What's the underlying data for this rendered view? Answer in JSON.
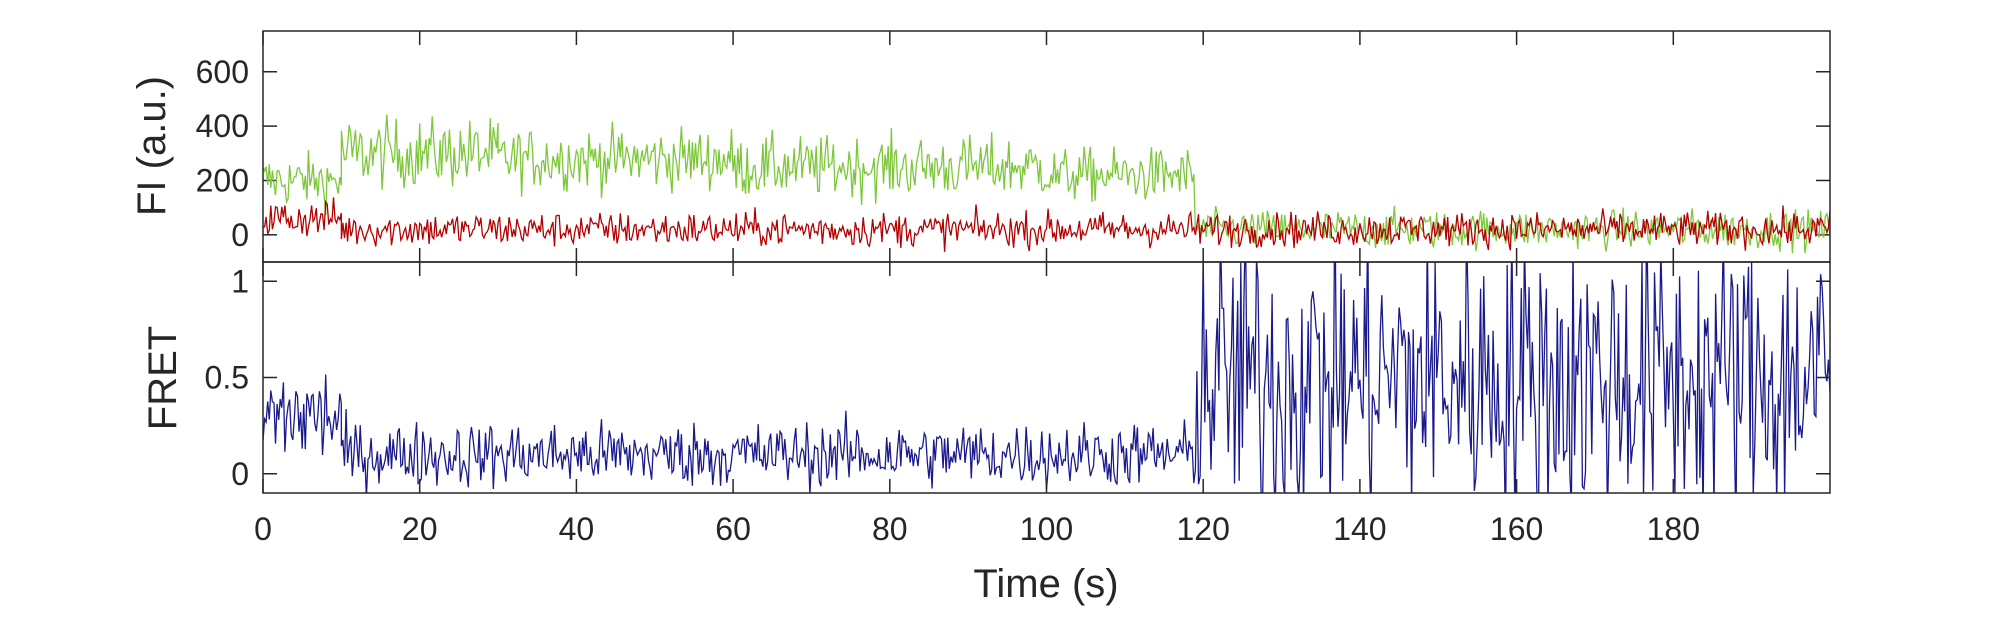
{
  "chart_data": [
    {
      "type": "line",
      "panel": "top",
      "ylabel": "FI (a.u.)",
      "xlim": [
        0,
        200
      ],
      "ylim": [
        -100,
        750
      ],
      "yticks": [
        0,
        200,
        400,
        600
      ],
      "ytick_labels": [
        "0",
        "200",
        "400",
        "600"
      ],
      "grid": false,
      "series": [
        {
          "color": "#7dc83a",
          "segments": [
            {
              "x": [
                0,
                10
              ],
              "mean": 200,
              "noise": 70
            },
            {
              "x": [
                10,
                30
              ],
              "mean": 300,
              "noise": 90
            },
            {
              "x": [
                30,
                60
              ],
              "mean": 280,
              "noise": 80
            },
            {
              "x": [
                60,
                100
              ],
              "mean": 250,
              "noise": 80
            },
            {
              "x": [
                100,
                119
              ],
              "mean": 220,
              "noise": 70
            },
            {
              "x": [
                119,
                200
              ],
              "mean": 20,
              "noise": 50
            }
          ]
        },
        {
          "color": "#b30000",
          "segments": [
            {
              "x": [
                0,
                10
              ],
              "mean": 60,
              "noise": 50
            },
            {
              "x": [
                10,
                119
              ],
              "mean": 20,
              "noise": 45
            },
            {
              "x": [
                119,
                200
              ],
              "mean": 20,
              "noise": 45
            }
          ]
        }
      ]
    },
    {
      "type": "line",
      "panel": "bottom",
      "ylabel": "FRET",
      "xlabel": "Time (s)",
      "xlim": [
        0,
        200
      ],
      "ylim": [
        -0.1,
        1.1
      ],
      "xticks": [
        0,
        20,
        40,
        60,
        80,
        100,
        120,
        140,
        160,
        180
      ],
      "xtick_labels": [
        "0",
        "20",
        "40",
        "60",
        "80",
        "100",
        "120",
        "140",
        "160",
        "180"
      ],
      "yticks": [
        0,
        0.5,
        1
      ],
      "ytick_labels": [
        "0",
        "0.5",
        "1"
      ],
      "grid": false,
      "series": [
        {
          "color": "#1a1a8c",
          "segments": [
            {
              "x": [
                0,
                10
              ],
              "mean": 0.3,
              "noise": 0.2
            },
            {
              "x": [
                10,
                119
              ],
              "mean": 0.1,
              "noise": 0.12
            },
            {
              "x": [
                119,
                200
              ],
              "mean": 0.5,
              "noise": 0.55
            }
          ]
        }
      ]
    }
  ]
}
